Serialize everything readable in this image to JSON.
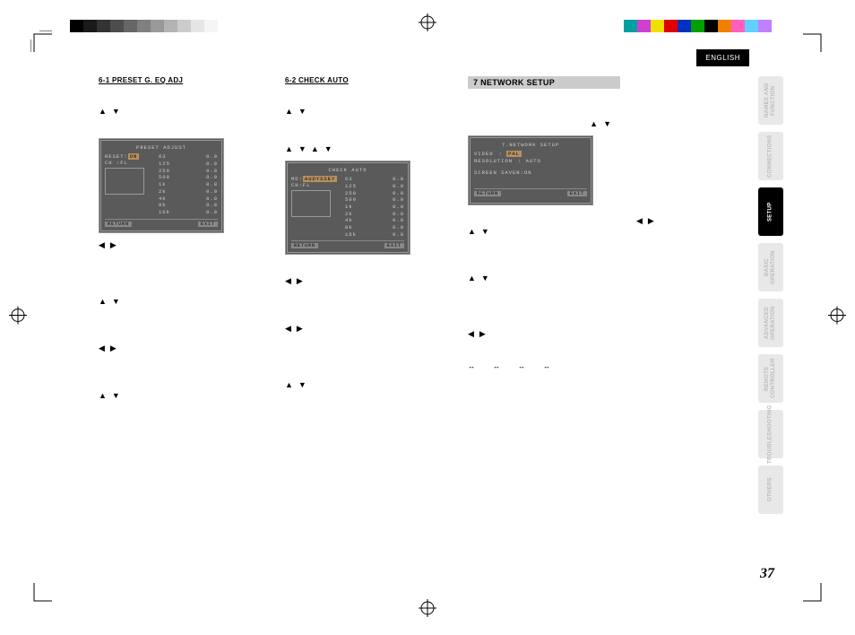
{
  "colorbar_gray": [
    "#000000",
    "#1a1a1a",
    "#333333",
    "#4d4d4d",
    "#666666",
    "#808080",
    "#999999",
    "#b3b3b3",
    "#cccccc",
    "#e6e6e6",
    "#f5f5f5"
  ],
  "colorbar_rainbow": [
    "#00a0a0",
    "#d040d0",
    "#f0e000",
    "#e00000",
    "#0030c0",
    "#00a000",
    "#000000",
    "#f08000",
    "#ff60c0",
    "#60d0ff",
    "#c080ff",
    "#ffffff"
  ],
  "english_label": "ENGLISH",
  "tabs": [
    {
      "label": "NAMES AND FUNCTION",
      "active": false
    },
    {
      "label": "CONNECTIONS",
      "active": false
    },
    {
      "label": "SETUP",
      "active": true
    },
    {
      "label": "BASIC OPERATION",
      "active": false
    },
    {
      "label": "ADVANCED OPERATION",
      "active": false
    },
    {
      "label": "REMOTE CONTROLLER",
      "active": false
    },
    {
      "label": "TROUBLESHOOTING",
      "active": false
    },
    {
      "label": "OTHERS",
      "active": false
    }
  ],
  "col1": {
    "heading": "6-1  PRESET G. EQ ADJ",
    "osd": {
      "title": "PRESET ADJUST",
      "reset_label": "RESET:",
      "reset_value": "ON",
      "ch_label": "CH  :FL",
      "freqs": [
        "63",
        "125",
        "250",
        "500",
        "1k",
        "2k",
        "4k",
        "8k",
        "16k"
      ],
      "vals": [
        "0.0",
        "0.0",
        "0.0",
        "0.0",
        "0.0",
        "0.0",
        "0.0",
        "0.0",
        "0.0"
      ],
      "ret": "RETURN",
      "exit": "EXIT"
    }
  },
  "col2": {
    "heading": "6-2  CHECK AUTO",
    "osd": {
      "title": "CHECK AUTO",
      "md_label": "MD:",
      "md_value": "AUDYSSEY",
      "ch_label": "CH:FL",
      "freqs": [
        "63",
        "125",
        "250",
        "500",
        "1k",
        "2k",
        "4k",
        "8k",
        "16k"
      ],
      "vals": [
        "0.0",
        "0.0",
        "0.0",
        "0.0",
        "0.0",
        "0.0",
        "0.0",
        "0.0",
        "0.0"
      ],
      "ret": "RETURN",
      "exit": "EXIT"
    }
  },
  "col3": {
    "heading": "7  NETWORK SETUP",
    "osd": {
      "title": "7.NETWORK SETUP",
      "rows": [
        {
          "l": "VIDEO",
          "v": "PAL",
          "hi": true
        },
        {
          "l": "RESOLUTION",
          "v": "AUTO",
          "hi": false
        }
      ],
      "saver": "SCREEN SAVER:ON",
      "ret": "RETURN",
      "exit": "EXIT"
    }
  },
  "page_number": "37",
  "arrows": {
    "up": "▲",
    "down": "▼",
    "left": "◀",
    "right": "▶",
    "lr_hollow": "↔"
  }
}
